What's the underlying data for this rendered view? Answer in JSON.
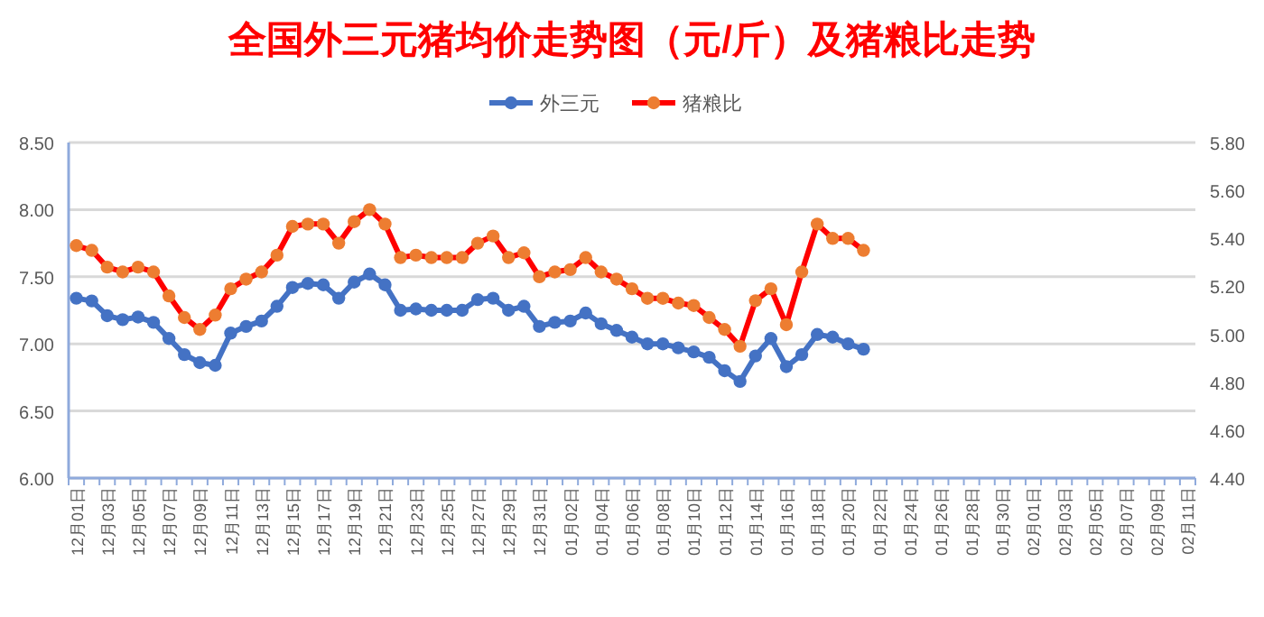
{
  "chart_data": {
    "type": "line",
    "title": "全国外三元猪均价走势图（元/斤）及猪粮比走势",
    "categories": [
      "12月01日",
      null,
      "12月03日",
      null,
      "12月05日",
      null,
      "12月07日",
      null,
      "12月09日",
      null,
      "12月11日",
      null,
      "12月13日",
      null,
      "12月15日",
      null,
      "12月17日",
      null,
      "12月19日",
      null,
      "12月21日",
      null,
      "12月23日",
      null,
      "12月25日",
      null,
      "12月27日",
      null,
      "12月29日",
      null,
      "12月31日",
      null,
      "01月02日",
      null,
      "01月04日",
      null,
      "01月06日",
      null,
      "01月08日",
      null,
      "01月10日",
      null,
      "01月12日",
      null,
      "01月14日",
      null,
      "01月16日",
      null,
      "01月18日",
      null,
      "01月20日",
      null,
      "01月22日",
      null,
      "01月24日",
      null,
      "01月26日",
      null,
      "01月28日",
      null,
      "01月30日",
      null,
      "02月01日",
      null,
      "02月03日",
      null,
      "02月05日",
      null,
      "02月07日",
      null,
      "02月09日",
      null,
      "02月11日"
    ],
    "series": [
      {
        "name": "外三元",
        "color": "#4472c4",
        "values": [
          7.34,
          7.32,
          7.21,
          7.18,
          7.2,
          7.16,
          7.04,
          6.92,
          6.86,
          6.84,
          7.08,
          7.13,
          7.17,
          7.28,
          7.42,
          7.45,
          7.44,
          7.34,
          7.46,
          7.52,
          7.44,
          7.25,
          7.26,
          7.25,
          7.25,
          7.25,
          7.33,
          7.34,
          7.25,
          7.28,
          7.13,
          7.16,
          7.17,
          7.23,
          7.15,
          7.1,
          7.05,
          7.0,
          7.0,
          6.97,
          6.94,
          6.9,
          6.8,
          6.72,
          6.91,
          7.04,
          6.83,
          6.92,
          7.07,
          7.05,
          7.0,
          6.96,
          null,
          null,
          null,
          null,
          null,
          null,
          null,
          null,
          null,
          null,
          null,
          null,
          null,
          null,
          null,
          null,
          null,
          null,
          null,
          null,
          null
        ]
      },
      {
        "name": "猪粮比",
        "color": "#ff0000",
        "axis": "y2",
        "colors": [
          "#ed7d31",
          "#ed7d31",
          "#ed7d31",
          "#ed7d31",
          "#ed7d31",
          "#ed7d31",
          "#ed7d31",
          "#ed7d31",
          "#ed7d31",
          "#ed7d31",
          "#ed7d31",
          "#ed7d31",
          "#ed7d31",
          "#ed7d31",
          "#ed7d31",
          "#ed7d31",
          "#ed7d31",
          "#ed7d31",
          "#ed7d31",
          "#ed7d31",
          "#ed7d31",
          "#ed7d31",
          "#ed7d31",
          "#ed7d31",
          "#ed7d31",
          "#ed7d31",
          "#ed7d31",
          "#ed7d31",
          "#ed7d31",
          "#ed7d31",
          "#ed7d31",
          "#ed7d31",
          "#ed7d31",
          "#ed7d31",
          "#ed7d31",
          "#ed7d31",
          "#ed7d31",
          "#ed7d31",
          "#ed7d31",
          "#ed7d31",
          "#ed7d31",
          "#ed7d31",
          "#ed7d31",
          "#ed7d31",
          "#ed7d31",
          "#ed7d31",
          "#ed7d31",
          "#ed7d31",
          "#ed7d31",
          "#ed7d31",
          "#ed7d31",
          "#ed7d31",
          null,
          null,
          null,
          null,
          null,
          null,
          null,
          null,
          null,
          null,
          null,
          null,
          null,
          null,
          null,
          null,
          null,
          null,
          null,
          null,
          null
        ],
        "values": [
          5.37,
          5.35,
          5.28,
          5.26,
          5.28,
          5.26,
          5.16,
          5.07,
          5.02,
          5.08,
          5.19,
          5.23,
          5.26,
          5.33,
          5.45,
          5.46,
          5.46,
          5.38,
          5.47,
          5.52,
          5.46,
          5.32,
          5.33,
          5.32,
          5.32,
          5.32,
          5.38,
          5.41,
          5.32,
          5.34,
          5.24,
          5.26,
          5.27,
          5.32,
          5.26,
          5.23,
          5.19,
          5.15,
          5.15,
          5.13,
          5.12,
          5.07,
          5.02,
          4.95,
          5.14,
          5.19,
          5.04,
          5.26,
          5.46,
          5.4,
          5.4,
          5.35,
          null,
          null,
          null,
          null,
          null,
          null,
          null,
          null,
          null,
          null,
          null,
          null,
          null,
          null,
          null,
          null,
          null,
          null,
          null,
          null,
          null
        ]
      }
    ],
    "ylim": [
      6.0,
      8.5
    ],
    "yticks": [
      {
        "value": 6,
        "label": "6.00"
      },
      {
        "value": 6.5,
        "label": "6.50"
      },
      {
        "value": 7,
        "label": "7.00"
      },
      {
        "value": 7.5,
        "label": "7.50"
      },
      {
        "value": 8,
        "label": "8.00"
      },
      {
        "value": 8.5,
        "label": "8.50"
      }
    ],
    "y2lim": [
      4.4,
      5.8
    ],
    "y2ticks": [
      {
        "value": 4.4,
        "label": "4.40"
      },
      {
        "value": 4.6,
        "label": "4.60"
      },
      {
        "value": 4.8,
        "label": "4.80"
      },
      {
        "value": 5,
        "label": "5.00"
      },
      {
        "value": 5.2,
        "label": "5.20"
      },
      {
        "value": 5.4,
        "label": "5.40"
      },
      {
        "value": 5.6,
        "label": "5.60"
      },
      {
        "value": 5.8,
        "label": "5.80"
      }
    ],
    "grid": "y",
    "legend": "top",
    "marker": "circle",
    "line_style": "solid"
  }
}
